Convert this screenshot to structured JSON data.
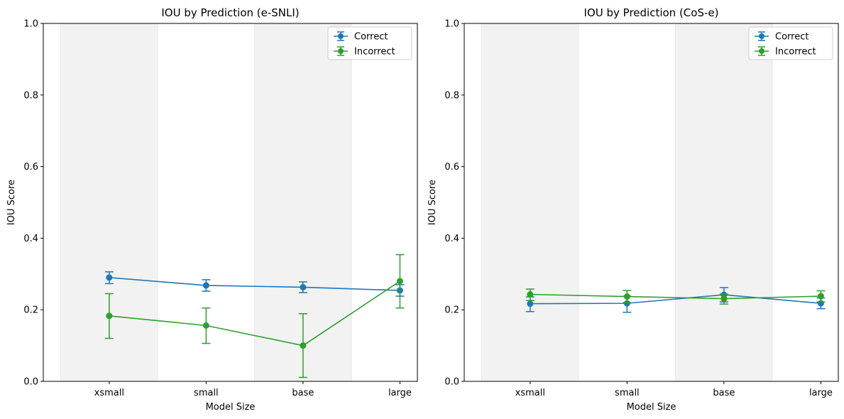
{
  "chart_data": [
    {
      "type": "line",
      "title": "IOU by Prediction (e-SNLI)",
      "xlabel": "Model Size",
      "ylabel": "IOU Score",
      "categories": [
        "xsmall",
        "small",
        "base",
        "large"
      ],
      "ylim": [
        0,
        1
      ],
      "yticks": [
        "0.0",
        "0.2",
        "0.4",
        "0.6",
        "0.8",
        "1.0"
      ],
      "grid": false,
      "shaded_bands": [
        "xsmall",
        "base"
      ],
      "legend": {
        "placement": "top-right"
      },
      "series": [
        {
          "name": "Correct",
          "color": "#1f77b4",
          "values": [
            0.29,
            0.268,
            0.263,
            0.254
          ],
          "err_low": [
            0.273,
            0.252,
            0.248,
            0.238
          ],
          "err_high": [
            0.306,
            0.284,
            0.278,
            0.27
          ]
        },
        {
          "name": "Incorrect",
          "color": "#2ca02c",
          "values": [
            0.183,
            0.156,
            0.1,
            0.28
          ],
          "err_low": [
            0.12,
            0.106,
            0.011,
            0.205
          ],
          "err_high": [
            0.245,
            0.205,
            0.189,
            0.354
          ]
        }
      ]
    },
    {
      "type": "line",
      "title": "IOU by Prediction (CoS-e)",
      "xlabel": "Model Size",
      "ylabel": "IOU Score",
      "categories": [
        "xsmall",
        "small",
        "base",
        "large"
      ],
      "ylim": [
        0,
        1
      ],
      "yticks": [
        "0.0",
        "0.2",
        "0.4",
        "0.6",
        "0.8",
        "1.0"
      ],
      "grid": false,
      "shaded_bands": [
        "xsmall",
        "base"
      ],
      "legend": {
        "placement": "top-right"
      },
      "series": [
        {
          "name": "Correct",
          "color": "#1f77b4",
          "values": [
            0.217,
            0.218,
            0.242,
            0.218
          ],
          "err_low": [
            0.195,
            0.193,
            0.222,
            0.203
          ],
          "err_high": [
            0.236,
            0.238,
            0.262,
            0.233
          ]
        },
        {
          "name": "Incorrect",
          "color": "#2ca02c",
          "values": [
            0.243,
            0.237,
            0.231,
            0.238
          ],
          "err_low": [
            0.226,
            0.22,
            0.216,
            0.222
          ],
          "err_high": [
            0.258,
            0.254,
            0.244,
            0.253
          ]
        }
      ]
    }
  ]
}
